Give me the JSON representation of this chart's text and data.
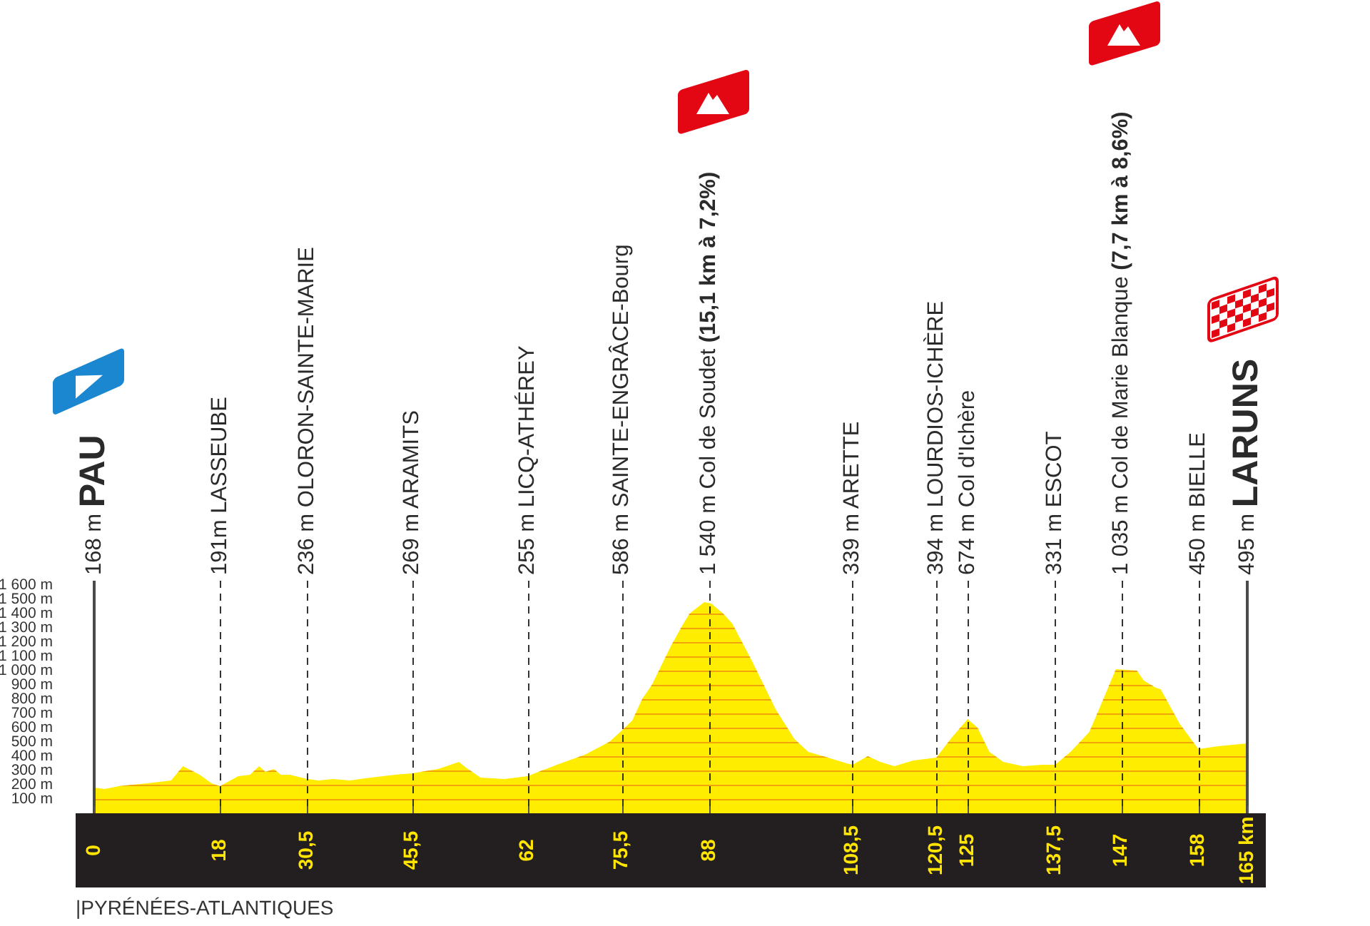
{
  "chart_data": {
    "type": "area",
    "x": [
      0,
      1.5,
      3.5,
      7.6,
      11,
      12.7,
      15.1,
      16.8,
      18,
      20.6,
      22.3,
      23.6,
      24.5,
      25.7,
      26.7,
      28,
      30.5,
      32.1,
      34.2,
      36.6,
      39.6,
      43,
      45.5,
      49.2,
      52.2,
      53.2,
      55.3,
      58.7,
      62,
      66.2,
      70.2,
      73.7,
      75.5,
      77,
      78.4,
      79.8,
      82.5,
      84.2,
      85.2,
      87.3,
      88.3,
      90,
      91.3,
      94.1,
      97.5,
      100.2,
      102.2,
      105,
      107.7,
      108.5,
      110.7,
      112.5,
      114.5,
      117.2,
      120.5,
      122.7,
      125,
      126.4,
      128.1,
      130.1,
      132.9,
      135.6,
      137.5,
      139.7,
      142.4,
      144.4,
      146.2,
      149.2,
      150.2,
      151.9,
      152.6,
      155.3,
      158,
      160.8,
      165
    ],
    "values": [
      180,
      170,
      190,
      210,
      230,
      330,
      270,
      210,
      190,
      260,
      270,
      330,
      290,
      310,
      270,
      270,
      240,
      230,
      240,
      230,
      250,
      270,
      280,
      310,
      360,
      320,
      250,
      240,
      260,
      340,
      410,
      500,
      580,
      650,
      800,
      900,
      1170,
      1320,
      1400,
      1480,
      1470,
      1400,
      1330,
      1070,
      730,
      520,
      430,
      390,
      350,
      340,
      400,
      360,
      330,
      370,
      390,
      530,
      660,
      600,
      430,
      360,
      330,
      340,
      340,
      430,
      570,
      800,
      1010,
      1000,
      930,
      880,
      870,
      630,
      450,
      470,
      490
    ],
    "color": "#ffed00",
    "xlim": [
      0,
      165
    ],
    "xticks": [
      0,
      18,
      {
        "value": 30.5,
        "label": "30,5"
      },
      {
        "value": 45.5,
        "label": "45,5"
      },
      62,
      {
        "value": 75.5,
        "label": "75,5"
      },
      88,
      {
        "value": 108.5,
        "label": "108,5"
      },
      {
        "value": 120.5,
        "label": "120,5"
      },
      125,
      {
        "value": 137.5,
        "label": "137,5"
      },
      147,
      158,
      {
        "value": 165,
        "label": "165 km"
      }
    ],
    "ylim": [
      0,
      1600
    ],
    "yticks": [
      {
        "value": 100,
        "label": "100 m"
      },
      {
        "value": 200,
        "label": "200 m"
      },
      {
        "value": 300,
        "label": "300 m"
      },
      {
        "value": 400,
        "label": "400 m"
      },
      {
        "value": 500,
        "label": "500 m"
      },
      {
        "value": 600,
        "label": "600 m"
      },
      {
        "value": 700,
        "label": "700 m"
      },
      {
        "value": 800,
        "label": "800 m"
      },
      {
        "value": 900,
        "label": "900 m"
      },
      {
        "value": 1000,
        "label": "1 000 m"
      },
      {
        "value": 1100,
        "label": "1 100 m"
      },
      {
        "value": 1200,
        "label": "1 200 m"
      },
      {
        "value": 1300,
        "label": "1 300 m"
      },
      {
        "value": 1400,
        "label": "1 400 m"
      },
      {
        "value": 1500,
        "label": "1 500 m"
      },
      {
        "value": 1600,
        "label": "1 600 m"
      }
    ],
    "grid": "y",
    "ref_lines": [
      {
        "axis": "x",
        "value": 0,
        "label": "168 m PAU",
        "line_style": "solid",
        "color": "#4a4a4a"
      },
      {
        "axis": "x",
        "value": 18,
        "label": "191m LASSEUBE",
        "line_style": "dashed",
        "color": "#333333"
      },
      {
        "axis": "x",
        "value": 30.5,
        "label": "236 m OLORON-SAINTE-MARIE",
        "line_style": "dashed",
        "color": "#333333"
      },
      {
        "axis": "x",
        "value": 45.5,
        "label": "269 m ARAMITS",
        "line_style": "dashed",
        "color": "#333333"
      },
      {
        "axis": "x",
        "value": 62,
        "label": "255 m LICQ-ATHÉREY",
        "line_style": "dashed",
        "color": "#333333"
      },
      {
        "axis": "x",
        "value": 75.5,
        "label": "586 m SAINTE-ENGRÂCE-Bourg",
        "line_style": "dashed",
        "color": "#333333"
      },
      {
        "axis": "x",
        "value": 88,
        "label": "1 540 m Col de Soudet (15,1 km à 7,2%)",
        "line_style": "dashed",
        "color": "#333333"
      },
      {
        "axis": "x",
        "value": 108.5,
        "label": "339 m ARETTE",
        "line_style": "dashed",
        "color": "#333333"
      },
      {
        "axis": "x",
        "value": 120.5,
        "label": "394 m LOURDIOS-ICHÈRE",
        "line_style": "dashed",
        "color": "#333333"
      },
      {
        "axis": "x",
        "value": 125,
        "label": "674 m Col d'Ichère",
        "line_style": "dashed",
        "color": "#333333"
      },
      {
        "axis": "x",
        "value": 137.5,
        "label": "331 m ESCOT",
        "line_style": "dashed",
        "color": "#333333"
      },
      {
        "axis": "x",
        "value": 147,
        "label": "1 035 m Col de Marie Blanque (7,7 km à 8,6%)",
        "line_style": "dashed",
        "color": "#333333"
      },
      {
        "axis": "x",
        "value": 158,
        "label": "450 m BIELLE",
        "line_style": "dashed",
        "color": "#333333"
      },
      {
        "axis": "x",
        "value": 165,
        "label": "495 m LARUNS",
        "line_style": "solid",
        "color": "#4a4a4a"
      }
    ],
    "annotations": [
      "|PYRÉNÉES-ATLANTIQUES"
    ]
  }
}
